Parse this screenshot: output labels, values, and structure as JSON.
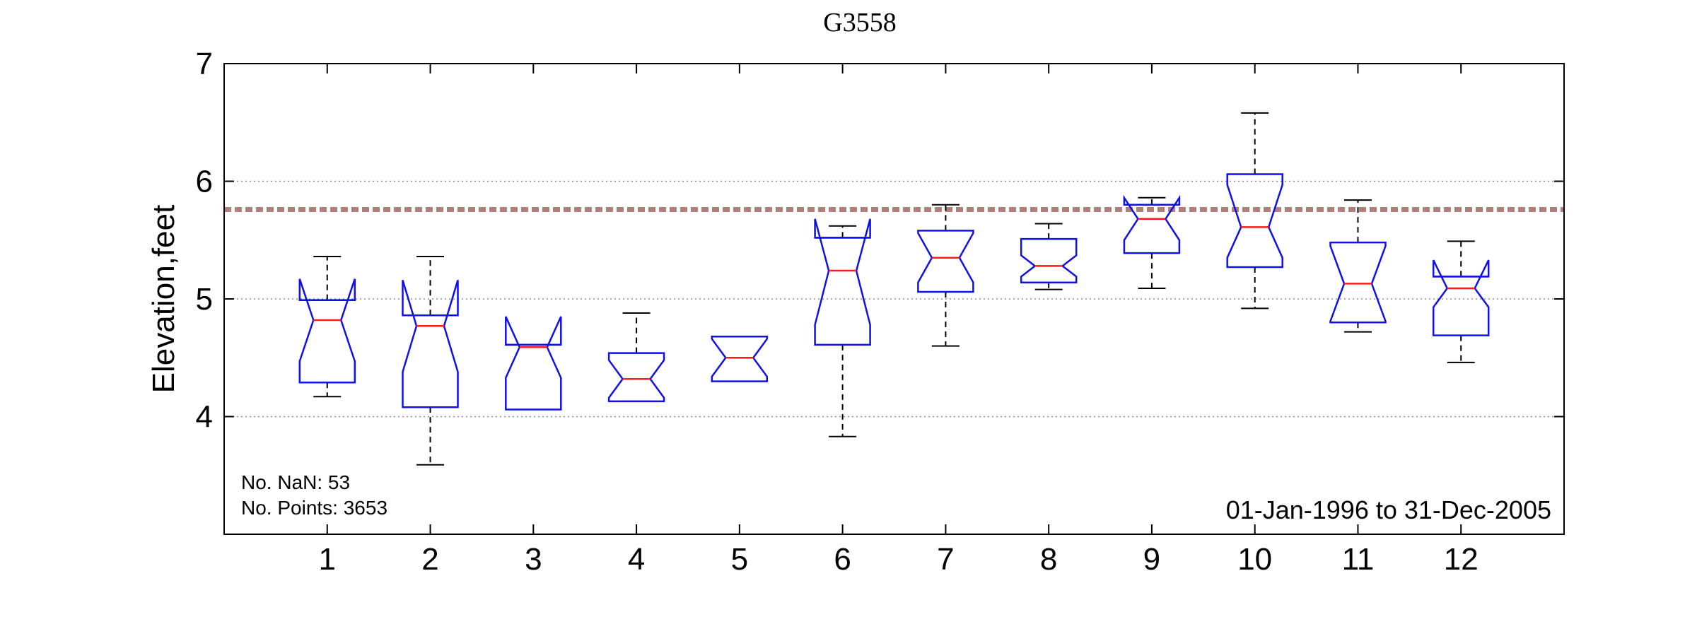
{
  "chart_data": {
    "type": "boxplot",
    "title": "G3558",
    "ylabel": "Elevation,feet",
    "xlabel": "",
    "categories": [
      "1",
      "2",
      "3",
      "4",
      "5",
      "6",
      "7",
      "8",
      "9",
      "10",
      "11",
      "12"
    ],
    "ylim": [
      3.0,
      7.0
    ],
    "yticks": [
      "4",
      "5",
      "6",
      "7"
    ],
    "grid": "horizontal dotted at y ticks",
    "notched": true,
    "boxes": [
      {
        "category": "1",
        "whisker_low": 4.17,
        "q1": 4.29,
        "median": 4.82,
        "q3": 4.99,
        "whisker_high": 5.36,
        "notch_low": 4.47,
        "notch_high": 5.17
      },
      {
        "category": "2",
        "whisker_low": 3.59,
        "q1": 4.08,
        "median": 4.77,
        "q3": 4.86,
        "whisker_high": 5.36,
        "notch_low": 4.38,
        "notch_high": 5.16
      },
      {
        "category": "3",
        "whisker_low": 4.06,
        "q1": 4.06,
        "median": 4.59,
        "q3": 4.61,
        "whisker_high": 4.61,
        "notch_low": 4.33,
        "notch_high": 4.85
      },
      {
        "category": "4",
        "whisker_low": 4.13,
        "q1": 4.13,
        "median": 4.32,
        "q3": 4.54,
        "whisker_high": 4.88,
        "notch_low": 4.16,
        "notch_high": 4.48
      },
      {
        "category": "5",
        "whisker_low": 4.3,
        "q1": 4.3,
        "median": 4.5,
        "q3": 4.68,
        "whisker_high": 4.68,
        "notch_low": 4.34,
        "notch_high": 4.66
      },
      {
        "category": "6",
        "whisker_low": 3.83,
        "q1": 4.61,
        "median": 5.24,
        "q3": 5.52,
        "whisker_high": 5.62,
        "notch_low": 4.78,
        "notch_high": 5.68
      },
      {
        "category": "7",
        "whisker_low": 4.6,
        "q1": 5.06,
        "median": 5.35,
        "q3": 5.58,
        "whisker_high": 5.8,
        "notch_low": 5.14,
        "notch_high": 5.56
      },
      {
        "category": "8",
        "whisker_low": 5.08,
        "q1": 5.14,
        "median": 5.28,
        "q3": 5.51,
        "whisker_high": 5.64,
        "notch_low": 5.19,
        "notch_high": 5.37
      },
      {
        "category": "9",
        "whisker_low": 5.09,
        "q1": 5.39,
        "median": 5.68,
        "q3": 5.8,
        "whisker_high": 5.86,
        "notch_low": 5.5,
        "notch_high": 5.86
      },
      {
        "category": "10",
        "whisker_low": 4.92,
        "q1": 5.27,
        "median": 5.61,
        "q3": 6.06,
        "whisker_high": 6.58,
        "notch_low": 5.35,
        "notch_high": 5.97
      },
      {
        "category": "11",
        "whisker_low": 4.72,
        "q1": 4.8,
        "median": 5.13,
        "q3": 5.48,
        "whisker_high": 5.84,
        "notch_low": 4.81,
        "notch_high": 5.45
      },
      {
        "category": "12",
        "whisker_low": 4.46,
        "q1": 4.69,
        "median": 5.09,
        "q3": 5.19,
        "whisker_high": 5.49,
        "notch_low": 4.93,
        "notch_high": 5.33
      }
    ],
    "reference_line": {
      "y": 5.76,
      "color": "#b07f7a",
      "style": "dashed"
    },
    "colors": {
      "box": "#1010e8",
      "median": "#ff1a1a",
      "whisker": "#000000",
      "grid": "#8c8c8c"
    }
  },
  "annotations": {
    "nan_count": "No. NaN: 53",
    "point_count": "No. Points: 3653",
    "date_range": "01-Jan-1996 to 31-Dec-2005"
  }
}
